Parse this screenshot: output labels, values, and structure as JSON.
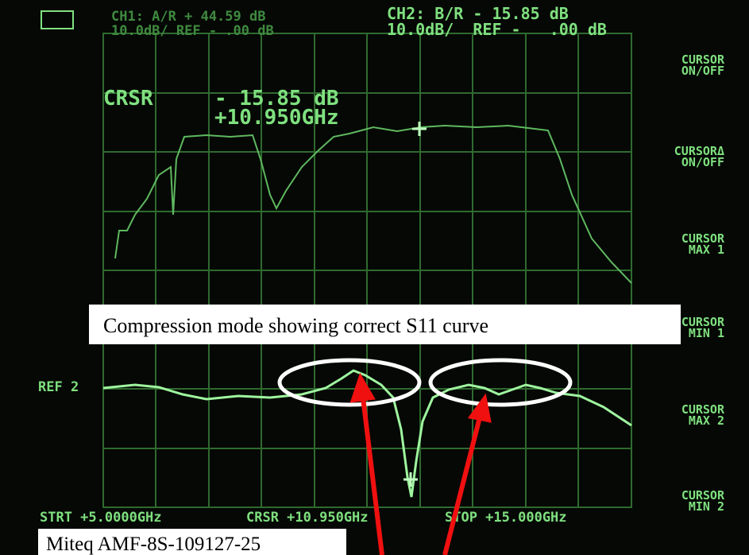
{
  "header": {
    "ch1_line1": "CH1: A/R + 44.59 dB",
    "ch1_line2": "10.0dB/  REF -    .00 dB",
    "ch2_line1": "CH2: B/R - 15.85 dB",
    "ch2_line2": "10.0dB/  REF -   .00 dB"
  },
  "cursor_readout": {
    "label": "CRSR",
    "value": "- 15.85 dB",
    "frequency": "+10.950GHz"
  },
  "reference_label": "REF 2",
  "softkeys": [
    [
      "CURSOR",
      "ON/OFF"
    ],
    [
      "CURSORΔ",
      "ON/OFF"
    ],
    [
      "CURSOR",
      "MAX 1"
    ],
    [
      "CURSOR",
      "MIN 1"
    ],
    [
      "CURSOR",
      "MAX 2"
    ],
    [
      "CURSOR",
      "MIN 2"
    ]
  ],
  "footer": {
    "start": "STRT +5.0000GHz",
    "cursor": "CRSR +10.950GHz",
    "stop": "STOP +15.000GHz"
  },
  "annotations": {
    "caption": "Compression mode showing correct S11 curve",
    "device": "Miteq AMF-8S-109127-25"
  }
}
